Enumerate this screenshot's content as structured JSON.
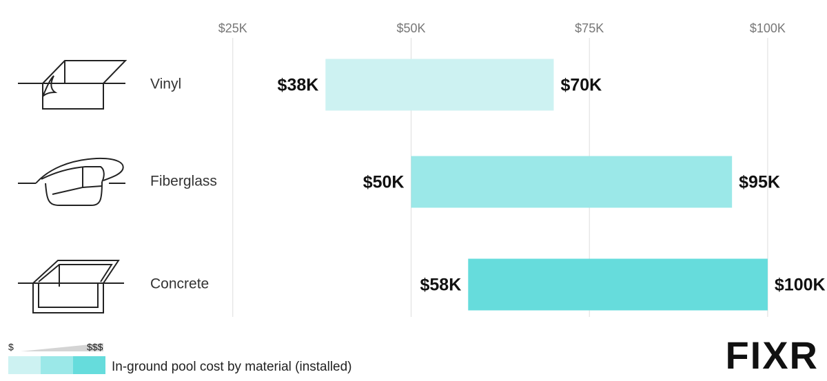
{
  "chart_data": {
    "type": "range-bar",
    "categories": [
      "Vinyl",
      "Fiberglass",
      "Concrete"
    ],
    "low": [
      38000,
      50000,
      58000
    ],
    "high": [
      70000,
      95000,
      100000
    ],
    "low_labels": [
      "$38K",
      "$50K",
      "$58K"
    ],
    "high_labels": [
      "$70K",
      "$95K",
      "$100K"
    ],
    "colors": [
      "#cdf2f2",
      "#9be8e8",
      "#66dcdc"
    ],
    "xlim": [
      17000,
      106000
    ],
    "xticks": [
      {
        "value": 25000,
        "label": "$25K"
      },
      {
        "value": 50000,
        "label": "$50K"
      },
      {
        "value": 75000,
        "label": "$75K"
      },
      {
        "value": 100000,
        "label": "$100K"
      }
    ],
    "grid": true,
    "legend_low": "$",
    "legend_high": "$$$",
    "caption": "In-ground pool cost by material (installed)"
  },
  "logo": "FIXR"
}
